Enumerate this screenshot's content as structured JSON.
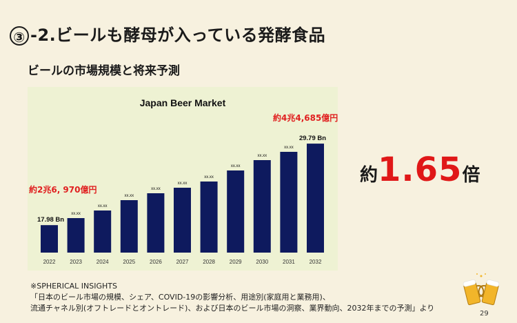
{
  "slide": {
    "number_mark": "③",
    "title": "-2.ビールも酵母が入っている発酵食品",
    "subtitle": "ビールの市場規模と将来予測",
    "note_top": "約4兆4,685億円",
    "note_left": "約2兆6, 970億円",
    "growth_prefix": "約",
    "growth_value": "1.65",
    "growth_suffix": "倍",
    "source_line1": "※SPHERICAL INSIGHTS",
    "source_line2": "「日本のビール市場の規模、シェア、COVID-19の影響分析、用途別(家庭用と業務用)、",
    "source_line3": "流通チャネル別(オフトレードとオントレード)、および日本のビール市場の洞察、業界動向、2032年までの予測」より",
    "page_number": "29"
  },
  "chart_data": {
    "type": "bar",
    "title": "Japan Beer Market",
    "categories": [
      "2022",
      "2023",
      "2024",
      "2025",
      "2026",
      "2027",
      "2028",
      "2029",
      "2030",
      "2031",
      "2032"
    ],
    "values": [
      17.98,
      19.0,
      20.1,
      21.6,
      22.6,
      23.4,
      24.3,
      25.9,
      27.4,
      28.6,
      29.79
    ],
    "data_labels": [
      "17.98 Bn",
      "xx.xx",
      "xx.xx",
      "xx.xx",
      "xx.xx",
      "xx.xx",
      "xx.xx",
      "xx.xx",
      "xx.xx",
      "xx.xx",
      "29.79 Bn"
    ],
    "ylim": [
      14,
      31
    ],
    "bar_color": "#0e1a5e",
    "xlabel": "",
    "ylabel": ""
  },
  "colors": {
    "accent_red": "#e01818",
    "background": "#f7f1df",
    "chart_background": "#eef2d3"
  },
  "icons": {
    "beer": "beer-cheers-icon"
  }
}
